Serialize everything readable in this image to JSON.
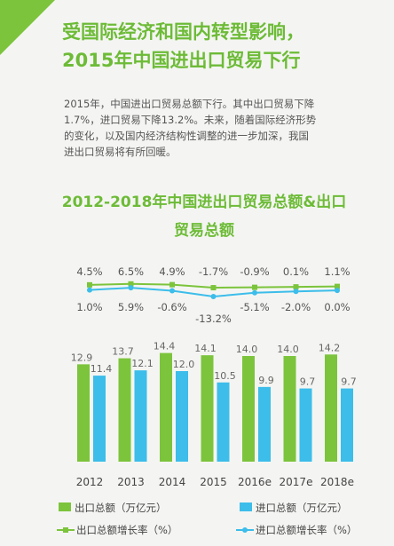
{
  "headline": {
    "line1": "受国际经济和国内转型影响，",
    "line2": "2015年中国进出口贸易下行"
  },
  "paragraph": {
    "line1": "2015年，中国进出口贸易总额下行。其中出口贸易下降",
    "line2": "1.7%，进口贸易下降13.2%。未来，随着国际经济形势",
    "line3": "的变化，以及国内经济结构性调整的进一步加深，我国",
    "line4": "进出口贸易将有所回暖。"
  },
  "colors": {
    "accent": "#6dbb37",
    "export_bar": "#7cc43c",
    "import_bar": "#3cbdea",
    "text": "#555555"
  },
  "chart_data": {
    "type": "bar",
    "title_line1": "2012-2018年中国进出口贸易总额&出口",
    "title_line2": "贸易总额",
    "categories": [
      "2012",
      "2013",
      "2014",
      "2015",
      "2016e",
      "2017e",
      "2018e"
    ],
    "series": [
      {
        "name": "出口总额（万亿元）",
        "values": [
          12.9,
          13.7,
          14.4,
          14.1,
          14.0,
          14.0,
          14.2
        ],
        "labels": [
          "12.9",
          "13.7",
          "14.4",
          "14.1",
          "14.0",
          "14.0",
          "14.2"
        ]
      },
      {
        "name": "进口总额（万亿元）",
        "values": [
          11.4,
          12.1,
          12.0,
          10.5,
          9.9,
          9.7,
          9.7
        ],
        "labels": [
          "11.4",
          "12.1",
          "12.0",
          "10.5",
          "9.9",
          "9.7",
          "9.7"
        ]
      }
    ],
    "line_series": [
      {
        "name": "出口总额增长率（%）",
        "values": [
          4.5,
          6.5,
          4.9,
          -1.7,
          -0.9,
          0.1,
          1.1
        ],
        "labels": [
          "4.5%",
          "6.5%",
          "4.9%",
          "-1.7%",
          "-0.9%",
          "0.1%",
          "1.1%"
        ]
      },
      {
        "name": "进口总额增长率（%）",
        "values": [
          1.0,
          5.9,
          -0.6,
          -13.2,
          -5.1,
          -2.0,
          0.0
        ],
        "labels": [
          "1.0%",
          "5.9%",
          "-0.6%",
          "-13.2%",
          "-5.1%",
          "-2.0%",
          "0.0%"
        ]
      }
    ],
    "legend_position": "bottom",
    "grid": false
  }
}
